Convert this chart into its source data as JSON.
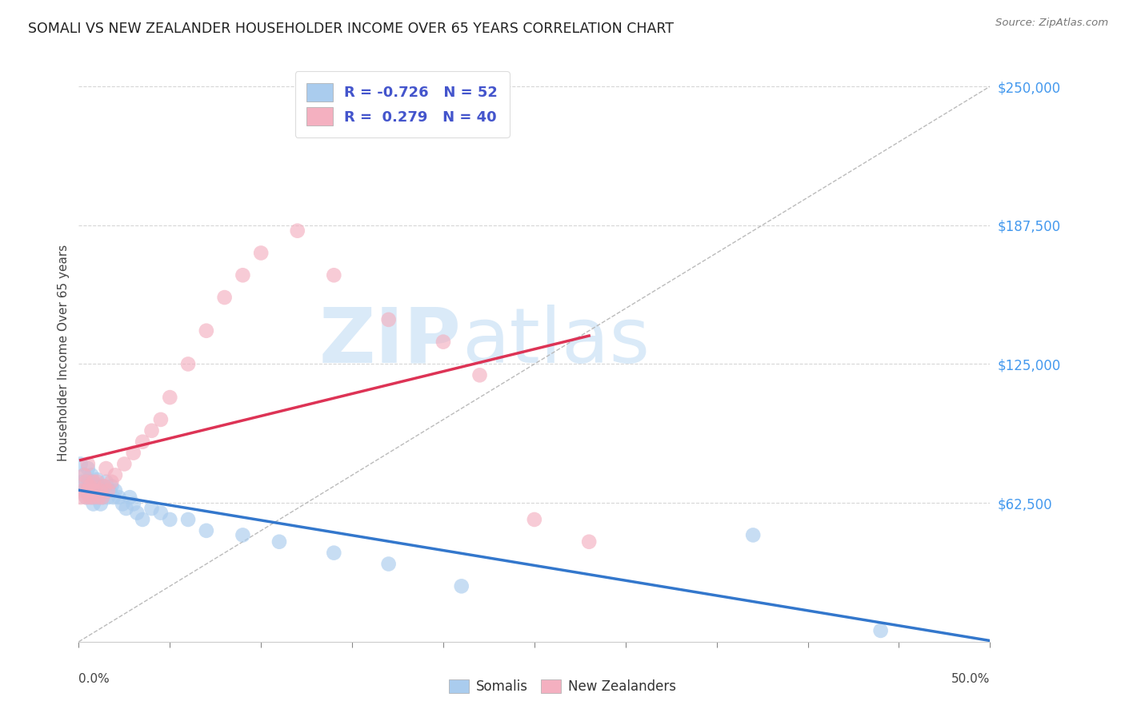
{
  "title": "SOMALI VS NEW ZEALANDER HOUSEHOLDER INCOME OVER 65 YEARS CORRELATION CHART",
  "source": "Source: ZipAtlas.com",
  "ylabel": "Householder Income Over 65 years",
  "ytick_labels": [
    "$250,000",
    "$187,500",
    "$125,000",
    "$62,500"
  ],
  "ytick_values": [
    250000,
    187500,
    125000,
    62500
  ],
  "xlim": [
    0.0,
    0.5
  ],
  "ylim": [
    0,
    260000
  ],
  "legend_r_somali": "-0.726",
  "legend_n_somali": "52",
  "legend_r_nz": "0.279",
  "legend_n_nz": "40",
  "somali_color": "#aaccee",
  "nz_color": "#f4b0c0",
  "somali_line_color": "#3377cc",
  "nz_line_color": "#dd3355",
  "watermark_color": "#daeaf8",
  "background_color": "#ffffff",
  "grid_color": "#cccccc",
  "title_color": "#222222",
  "axis_label_color": "#444444",
  "ytick_color": "#4499ee",
  "xtick_color": "#444444",
  "somali_scatter_x": [
    0.001,
    0.002,
    0.003,
    0.003,
    0.004,
    0.004,
    0.005,
    0.005,
    0.006,
    0.006,
    0.007,
    0.007,
    0.007,
    0.008,
    0.008,
    0.008,
    0.009,
    0.009,
    0.01,
    0.01,
    0.011,
    0.011,
    0.012,
    0.012,
    0.013,
    0.013,
    0.014,
    0.015,
    0.016,
    0.017,
    0.018,
    0.019,
    0.02,
    0.022,
    0.024,
    0.026,
    0.028,
    0.03,
    0.032,
    0.035,
    0.04,
    0.045,
    0.05,
    0.06,
    0.07,
    0.09,
    0.11,
    0.14,
    0.17,
    0.21,
    0.37,
    0.44
  ],
  "somali_scatter_y": [
    80000,
    72000,
    68000,
    75000,
    72000,
    65000,
    70000,
    78000,
    68000,
    72000,
    65000,
    70000,
    75000,
    62000,
    68000,
    72000,
    65000,
    70000,
    68000,
    73000,
    65000,
    70000,
    68000,
    62000,
    65000,
    70000,
    68000,
    72000,
    65000,
    68000,
    70000,
    65000,
    68000,
    65000,
    62000,
    60000,
    65000,
    62000,
    58000,
    55000,
    60000,
    58000,
    55000,
    55000,
    50000,
    48000,
    45000,
    40000,
    35000,
    25000,
    48000,
    5000
  ],
  "nz_scatter_x": [
    0.001,
    0.002,
    0.003,
    0.004,
    0.004,
    0.005,
    0.005,
    0.006,
    0.006,
    0.007,
    0.008,
    0.008,
    0.009,
    0.01,
    0.011,
    0.012,
    0.013,
    0.014,
    0.015,
    0.016,
    0.018,
    0.02,
    0.025,
    0.03,
    0.035,
    0.04,
    0.045,
    0.05,
    0.06,
    0.07,
    0.08,
    0.09,
    0.1,
    0.12,
    0.14,
    0.17,
    0.2,
    0.22,
    0.25,
    0.28
  ],
  "nz_scatter_y": [
    65000,
    68000,
    75000,
    65000,
    72000,
    68000,
    80000,
    65000,
    70000,
    68000,
    65000,
    72000,
    68000,
    72000,
    65000,
    68000,
    65000,
    70000,
    78000,
    68000,
    72000,
    75000,
    80000,
    85000,
    90000,
    95000,
    100000,
    110000,
    125000,
    140000,
    155000,
    165000,
    175000,
    185000,
    165000,
    145000,
    135000,
    120000,
    55000,
    45000
  ],
  "diag_line_x": [
    0.0,
    0.5
  ],
  "diag_line_y": [
    0,
    250000
  ]
}
